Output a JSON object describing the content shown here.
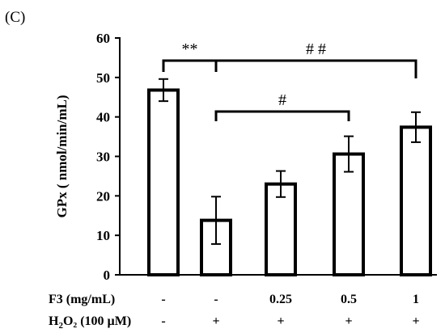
{
  "panel_label": "(C)",
  "chart_data": {
    "type": "bar",
    "ylabel": "GPx ( nmol/min/mL)",
    "ylim": [
      0,
      60
    ],
    "yticks": [
      0,
      10,
      20,
      30,
      40,
      50,
      60
    ],
    "values": [
      46.8,
      13.8,
      23.0,
      30.6,
      37.4
    ],
    "errors": [
      2.8,
      6.0,
      3.3,
      4.5,
      3.8
    ],
    "conditions": [
      {
        "label": "F3 (mg/mL)",
        "values": [
          "-",
          "-",
          "0.25",
          "0.5",
          "1"
        ]
      },
      {
        "label": "H₂O₂ (100 µM)",
        "values": [
          "-",
          "+",
          "+",
          "+",
          "+"
        ]
      }
    ],
    "annotations": [
      {
        "text": "**",
        "from": 0,
        "to": 1
      },
      {
        "text": "# #",
        "from": 1,
        "to": 4
      },
      {
        "text": "#",
        "from": 1,
        "to": 3
      }
    ]
  }
}
